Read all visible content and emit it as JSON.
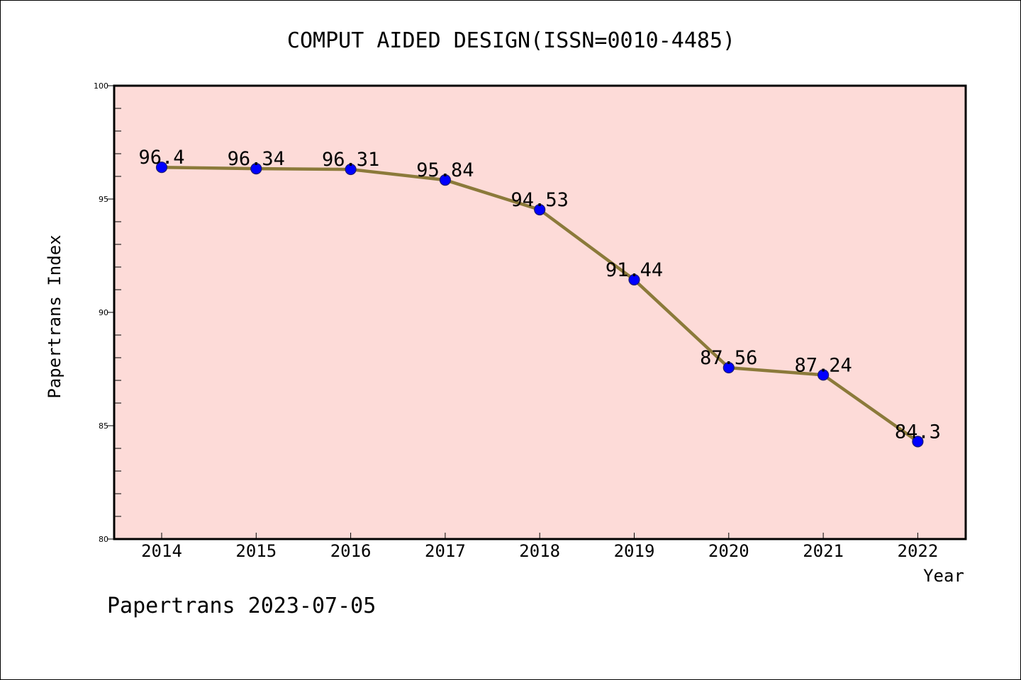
{
  "chart_data": {
    "type": "line",
    "title": "COMPUT AIDED DESIGN(ISSN=0010-4485)",
    "xlabel": "Year",
    "ylabel": "Papertrans Index",
    "categories": [
      "2014",
      "2015",
      "2016",
      "2017",
      "2018",
      "2019",
      "2020",
      "2021",
      "2022"
    ],
    "series": [
      {
        "values": [
          96.4,
          96.34,
          96.31,
          95.84,
          94.53,
          91.44,
          87.56,
          87.24,
          84.3
        ],
        "data_labels": [
          "96.4",
          "96.34",
          "96.31",
          "95.84",
          "94.53",
          "91.44",
          "87.56",
          "87.24",
          "84.3"
        ]
      }
    ],
    "ylim": [
      80,
      100
    ],
    "yticks": [
      80,
      85,
      90,
      95,
      100
    ],
    "ytick_labels": [
      "80",
      "85",
      "90",
      "95",
      "100"
    ],
    "y_minor_step": 1,
    "grid": false,
    "legend": "none"
  },
  "footer": "Papertrans 2023-07-05",
  "colors": {
    "plot_background": "#fddbd8",
    "line": "#8b7a3a",
    "marker": "#0000ff",
    "marker_edge": "#1a1a6e",
    "axes": "#000000"
  }
}
